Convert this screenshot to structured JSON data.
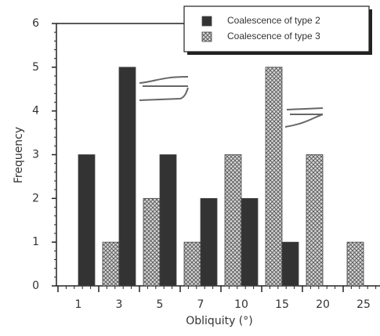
{
  "chart_data": {
    "type": "bar",
    "x_label": "Obliquity (°)",
    "y_label": "Frequency",
    "categories": [
      "1",
      "3",
      "5",
      "7",
      "10",
      "15",
      "20",
      "25"
    ],
    "series": [
      {
        "name": "Coalescence of type 3",
        "color": "#8a8a8a",
        "values": [
          0,
          1,
          2,
          1,
          3,
          5,
          3,
          1
        ]
      },
      {
        "name": "Coalescence of type 2",
        "color": "#333333",
        "values": [
          3,
          5,
          3,
          2,
          2,
          1,
          0,
          0
        ]
      }
    ],
    "ylim": [
      0,
      6
    ],
    "yticks": [
      0,
      1,
      2,
      3,
      4,
      5,
      6
    ]
  }
}
